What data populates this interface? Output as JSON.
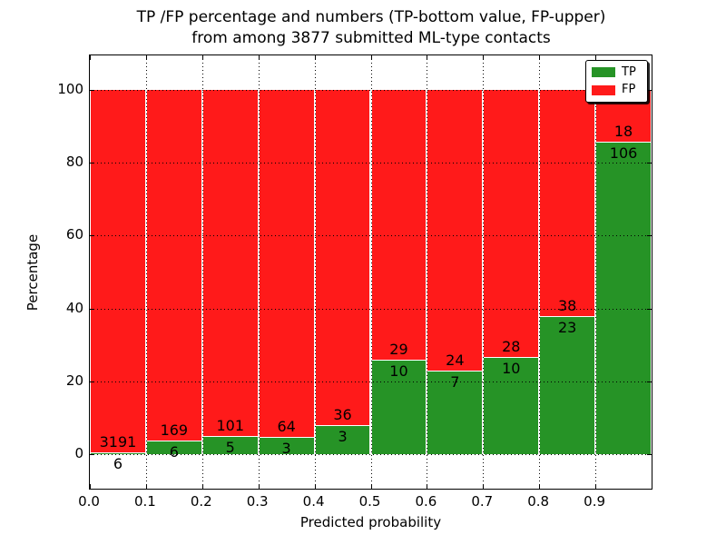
{
  "chart_data": {
    "type": "bar",
    "stacked": true,
    "title_line1": "TP /FP percentage and numbers (TP-bottom value, FP-upper)",
    "title_line2": "from among 3877 submitted ML-type contacts",
    "total_contacts": 3877,
    "xlabel": "Predicted probability",
    "ylabel": "Percentage",
    "bin_edges": [
      0.0,
      0.1,
      0.2,
      0.3,
      0.4,
      0.5,
      0.6,
      0.7,
      0.8,
      0.9,
      1.0
    ],
    "series": [
      {
        "name": "TP",
        "color": "#269326",
        "counts": [
          6,
          6,
          5,
          3,
          3,
          10,
          7,
          10,
          23,
          106
        ]
      },
      {
        "name": "FP",
        "color": "#ff1a1a",
        "counts": [
          3191,
          169,
          101,
          64,
          36,
          29,
          24,
          28,
          38,
          18
        ]
      }
    ],
    "bar_value_unit": "percent of bin total (TP+FP stack to 100%)",
    "xtick_labels": [
      "0.0",
      "0.1",
      "0.2",
      "0.3",
      "0.4",
      "0.5",
      "0.6",
      "0.7",
      "0.8",
      "0.9"
    ],
    "ytick_values": [
      0,
      20,
      40,
      60,
      80,
      100
    ],
    "xlim": [
      0.0,
      1.0
    ],
    "ylim": [
      -10,
      110
    ],
    "grid": "dotted",
    "legend_position": "upper right"
  }
}
